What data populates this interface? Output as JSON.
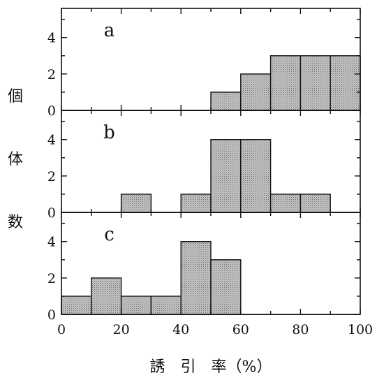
{
  "chart_data": {
    "type": "bar",
    "subtype": "histogram-stacked-panels",
    "ylabel_chars": [
      "個",
      "体",
      "数"
    ],
    "xlabel": "誘　引　率（%）",
    "xlim": [
      0,
      100
    ],
    "x_ticks": [
      0,
      20,
      40,
      60,
      80,
      100
    ],
    "x_minor_step": 10,
    "bin_width": 10,
    "colors": {
      "bar_fill": "#b8b8b8",
      "stroke": "#111111"
    },
    "panels": [
      {
        "label": "a",
        "ylim": [
          0,
          5.6
        ],
        "y_ticks": [
          0,
          2,
          4
        ],
        "bins": [
          {
            "x": 50,
            "count": 1
          },
          {
            "x": 60,
            "count": 2
          },
          {
            "x": 70,
            "count": 3
          },
          {
            "x": 80,
            "count": 3
          },
          {
            "x": 90,
            "count": 3
          }
        ]
      },
      {
        "label": "b",
        "ylim": [
          0,
          5.6
        ],
        "y_ticks": [
          0,
          2,
          4
        ],
        "bins": [
          {
            "x": 20,
            "count": 1
          },
          {
            "x": 40,
            "count": 1
          },
          {
            "x": 50,
            "count": 4
          },
          {
            "x": 60,
            "count": 4
          },
          {
            "x": 70,
            "count": 1
          },
          {
            "x": 80,
            "count": 1
          }
        ]
      },
      {
        "label": "c",
        "ylim": [
          0,
          5.6
        ],
        "y_ticks": [
          0,
          2,
          4
        ],
        "bins": [
          {
            "x": 0,
            "count": 1
          },
          {
            "x": 10,
            "count": 2
          },
          {
            "x": 20,
            "count": 1
          },
          {
            "x": 30,
            "count": 1
          },
          {
            "x": 40,
            "count": 4
          },
          {
            "x": 50,
            "count": 3
          }
        ]
      }
    ]
  }
}
